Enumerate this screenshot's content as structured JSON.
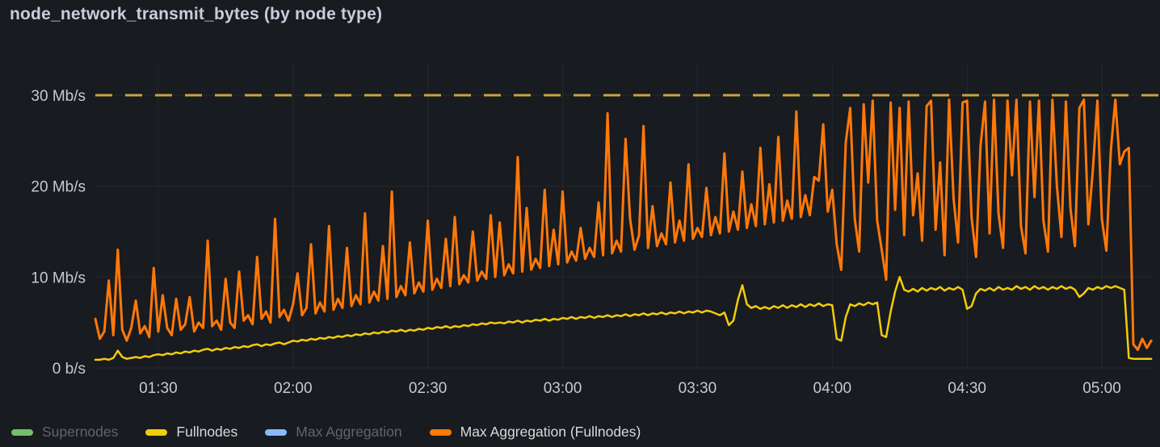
{
  "panel": {
    "title": "node_network_transmit_bytes (by node type)"
  },
  "chart_data": {
    "type": "line",
    "title": "node_network_transmit_bytes (by node type)",
    "xlabel": "",
    "ylabel": "",
    "unit": "Mb/s",
    "grid": true,
    "legend_position": "bottom",
    "ylim": [
      0,
      30
    ],
    "xlim": [
      76,
      311.5
    ],
    "x_start_minutes": 76,
    "x_step_minutes": 1,
    "x_range": {
      "start": "01:16",
      "end": "05:11"
    },
    "y_ticks": [
      {
        "value": 0,
        "label": "0 b/s"
      },
      {
        "value": 10,
        "label": "10 Mb/s"
      },
      {
        "value": 20,
        "label": "20 Mb/s"
      },
      {
        "value": 30,
        "label": "30 Mb/s"
      }
    ],
    "x_ticks": [
      {
        "label": "01:30",
        "minutes": 90
      },
      {
        "label": "02:00",
        "minutes": 120
      },
      {
        "label": "02:30",
        "minutes": 150
      },
      {
        "label": "03:00",
        "minutes": 180
      },
      {
        "label": "03:30",
        "minutes": 210
      },
      {
        "label": "04:00",
        "minutes": 240
      },
      {
        "label": "04:30",
        "minutes": 270
      },
      {
        "label": "05:00",
        "minutes": 300
      }
    ],
    "threshold": {
      "value": 30,
      "style": "dashed",
      "color": "#C9A243"
    },
    "colors": {
      "background": "#181B1F",
      "text": "#CCCCDC",
      "grid": "rgba(204,204,220,0.08)"
    },
    "series": [
      {
        "name": "Supernodes",
        "color": "#73BF69",
        "visible": false,
        "line_width": 2.5,
        "values": []
      },
      {
        "name": "Fullnodes",
        "color": "#F2CC0C",
        "visible": true,
        "line_width": 2.5,
        "values": [
          0.9,
          0.9,
          1.0,
          0.9,
          1.1,
          1.9,
          1.2,
          1.0,
          1.1,
          1.2,
          1.1,
          1.3,
          1.2,
          1.4,
          1.5,
          1.4,
          1.6,
          1.5,
          1.7,
          1.6,
          1.8,
          1.7,
          1.9,
          1.8,
          2.0,
          2.1,
          1.9,
          2.1,
          2.0,
          2.2,
          2.1,
          2.3,
          2.2,
          2.4,
          2.3,
          2.5,
          2.6,
          2.4,
          2.6,
          2.5,
          2.7,
          2.8,
          2.6,
          2.8,
          3.0,
          2.9,
          3.1,
          3.0,
          3.2,
          3.1,
          3.3,
          3.2,
          3.4,
          3.3,
          3.5,
          3.4,
          3.6,
          3.5,
          3.7,
          3.6,
          3.8,
          3.7,
          3.9,
          3.8,
          4.0,
          3.9,
          4.1,
          4.0,
          4.2,
          4.0,
          4.2,
          4.1,
          4.3,
          4.2,
          4.4,
          4.3,
          4.5,
          4.4,
          4.6,
          4.4,
          4.6,
          4.5,
          4.7,
          4.6,
          4.8,
          4.7,
          4.9,
          4.8,
          5.0,
          4.9,
          5.0,
          4.9,
          5.1,
          5.0,
          5.2,
          5.0,
          5.2,
          5.1,
          5.3,
          5.2,
          5.4,
          5.2,
          5.4,
          5.3,
          5.5,
          5.4,
          5.6,
          5.4,
          5.6,
          5.5,
          5.7,
          5.5,
          5.7,
          5.6,
          5.8,
          5.6,
          5.8,
          5.7,
          5.9,
          5.7,
          5.9,
          5.8,
          6.0,
          5.8,
          6.0,
          5.9,
          6.1,
          5.9,
          6.1,
          6.0,
          6.2,
          6.0,
          6.2,
          6.1,
          6.3,
          6.1,
          6.3,
          6.2,
          6.0,
          5.8,
          6.1,
          4.7,
          5.2,
          7.5,
          9.1,
          7.0,
          6.6,
          6.8,
          6.5,
          6.7,
          6.5,
          6.8,
          6.6,
          6.9,
          6.6,
          6.9,
          6.7,
          7.0,
          6.7,
          7.0,
          6.8,
          7.1,
          6.8,
          7.0,
          6.9,
          3.2,
          3.0,
          5.6,
          7.0,
          6.8,
          7.1,
          6.9,
          7.2,
          7.0,
          7.2,
          3.6,
          3.4,
          6.2,
          8.4,
          10.0,
          8.6,
          8.4,
          8.7,
          8.4,
          8.8,
          8.5,
          8.8,
          8.6,
          8.9,
          8.5,
          8.8,
          8.6,
          8.9,
          8.6,
          6.5,
          6.8,
          8.2,
          8.7,
          8.5,
          8.8,
          8.5,
          8.9,
          8.6,
          8.8,
          8.6,
          9.0,
          8.7,
          8.9,
          8.6,
          9.0,
          8.7,
          8.9,
          8.6,
          8.9,
          8.7,
          9.0,
          8.7,
          8.9,
          8.6,
          7.8,
          8.2,
          8.8,
          8.6,
          8.9,
          8.7,
          9.0,
          8.8,
          9.0,
          8.8,
          8.6,
          1.1,
          1.0,
          1.0,
          1.0,
          1.0,
          1.0
        ]
      },
      {
        "name": "Max Aggregation",
        "color": "#8AB8FF",
        "visible": false,
        "line_width": 2.5,
        "values": []
      },
      {
        "name": "Max Aggregation (Fullnodes)",
        "color": "#FF780A",
        "visible": true,
        "line_width": 3,
        "values": [
          5.4,
          3.2,
          4.0,
          9.6,
          3.6,
          13.0,
          4.2,
          3.0,
          4.4,
          7.4,
          3.8,
          4.6,
          3.4,
          11.0,
          4.0,
          8.0,
          4.4,
          3.6,
          7.6,
          4.2,
          4.8,
          7.8,
          4.0,
          5.0,
          4.4,
          14.0,
          4.6,
          5.2,
          4.2,
          9.8,
          5.0,
          4.4,
          10.6,
          5.2,
          5.8,
          4.8,
          12.2,
          5.4,
          6.2,
          5.0,
          16.4,
          5.6,
          6.4,
          5.2,
          7.0,
          10.4,
          5.8,
          6.6,
          13.6,
          6.0,
          7.2,
          6.2,
          15.6,
          6.4,
          7.6,
          6.6,
          13.2,
          6.8,
          8.0,
          7.0,
          17.0,
          7.2,
          8.4,
          7.4,
          13.4,
          7.6,
          19.4,
          7.8,
          9.0,
          8.0,
          13.8,
          8.2,
          9.4,
          8.4,
          16.2,
          8.6,
          9.8,
          8.8,
          14.2,
          9.0,
          16.6,
          9.2,
          10.2,
          9.4,
          15.0,
          9.6,
          10.6,
          9.8,
          16.8,
          10.0,
          16.0,
          10.2,
          11.4,
          10.4,
          23.2,
          10.6,
          17.6,
          10.8,
          12.0,
          11.0,
          19.6,
          11.2,
          15.2,
          11.4,
          19.4,
          11.6,
          12.8,
          11.8,
          15.4,
          12.0,
          13.2,
          12.2,
          18.2,
          12.4,
          28.0,
          12.6,
          14.0,
          12.8,
          25.2,
          16.4,
          13.0,
          14.6,
          26.6,
          13.2,
          17.8,
          13.4,
          14.8,
          13.6,
          20.4,
          13.8,
          16.2,
          14.0,
          22.4,
          14.2,
          15.4,
          14.4,
          19.8,
          14.6,
          16.6,
          14.8,
          23.6,
          15.0,
          17.2,
          15.2,
          21.6,
          15.4,
          18.0,
          15.6,
          24.2,
          15.8,
          20.2,
          16.0,
          25.4,
          16.2,
          18.4,
          16.4,
          28.2,
          16.6,
          19.0,
          16.8,
          21.0,
          20.6,
          26.8,
          17.2,
          19.6,
          13.6,
          10.8,
          24.8,
          28.6,
          16.4,
          12.8,
          29.0,
          20.4,
          29.4,
          16.2,
          13.0,
          9.7,
          29.2,
          17.4,
          28.6,
          14.6,
          29.3,
          16.8,
          21.4,
          14.0,
          28.8,
          29.4,
          15.2,
          22.6,
          12.4,
          29.5,
          18.6,
          13.8,
          29.2,
          29.4,
          16.6,
          12.2,
          24.4,
          29.3,
          14.8,
          29.5,
          17.0,
          13.2,
          29.4,
          21.2,
          29.5,
          15.6,
          12.6,
          29.3,
          18.8,
          29.4,
          16.2,
          12.8,
          29.5,
          20.0,
          14.4,
          29.3,
          17.6,
          13.4,
          28.6,
          29.5,
          15.8,
          21.8,
          29.4,
          16.4,
          12.9,
          24.0,
          29.5,
          22.4,
          23.8,
          24.2,
          2.6,
          2.0,
          3.2,
          2.2,
          3.0
        ]
      }
    ]
  }
}
